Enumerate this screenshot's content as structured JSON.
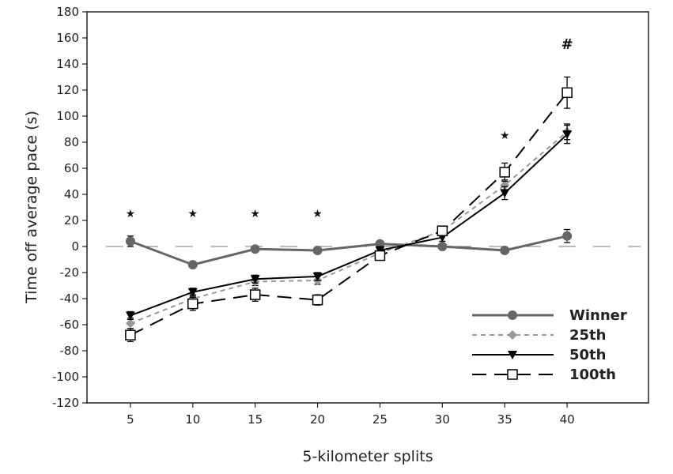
{
  "chart_data": {
    "type": "line",
    "title": "",
    "xlabel": "5-kilometer splits",
    "ylabel": "Time off average pace (s)",
    "x": [
      5,
      10,
      15,
      20,
      25,
      30,
      35,
      40
    ],
    "xlim": [
      0,
      45
    ],
    "ylim": [
      -120,
      180
    ],
    "yticks": [
      -120,
      -100,
      -80,
      -60,
      -40,
      -20,
      0,
      20,
      40,
      60,
      80,
      100,
      120,
      140,
      160,
      180
    ],
    "xticks": [
      5,
      10,
      15,
      20,
      25,
      30,
      35,
      40
    ],
    "reference_line": 0,
    "series": [
      {
        "name": "Winner",
        "values": [
          4,
          -14,
          -2,
          -3,
          2,
          0,
          -3,
          8
        ],
        "errors": [
          4,
          2,
          2,
          2,
          2,
          2,
          2,
          5
        ],
        "color": "#666666",
        "marker": "circle",
        "dash": "solid"
      },
      {
        "name": "25th",
        "values": [
          -59,
          -40,
          -27,
          -26,
          -5,
          12,
          47,
          88
        ],
        "errors": [
          4,
          3,
          3,
          3,
          3,
          3,
          4,
          6
        ],
        "color": "#999999",
        "marker": "diamond",
        "dash": "short"
      },
      {
        "name": "50th",
        "values": [
          -53,
          -35,
          -25,
          -23,
          -3,
          7,
          41,
          86
        ],
        "errors": [
          3,
          3,
          3,
          3,
          3,
          3,
          5,
          7
        ],
        "color": "#000000",
        "marker": "triangle-down",
        "dash": "solid"
      },
      {
        "name": "100th",
        "values": [
          -68,
          -44,
          -37,
          -41,
          -7,
          12,
          57,
          118
        ],
        "errors": [
          5,
          5,
          5,
          4,
          3,
          3,
          7,
          12
        ],
        "color": "#000000",
        "marker": "square-open",
        "dash": "long"
      }
    ],
    "annotations": [
      {
        "x": 5,
        "text": "*"
      },
      {
        "x": 10,
        "text": "*"
      },
      {
        "x": 15,
        "text": "*"
      },
      {
        "x": 20,
        "text": "*"
      },
      {
        "x": 35,
        "text": "*"
      },
      {
        "x": 40,
        "text": "#"
      }
    ],
    "legend_position": "bottom-right"
  }
}
